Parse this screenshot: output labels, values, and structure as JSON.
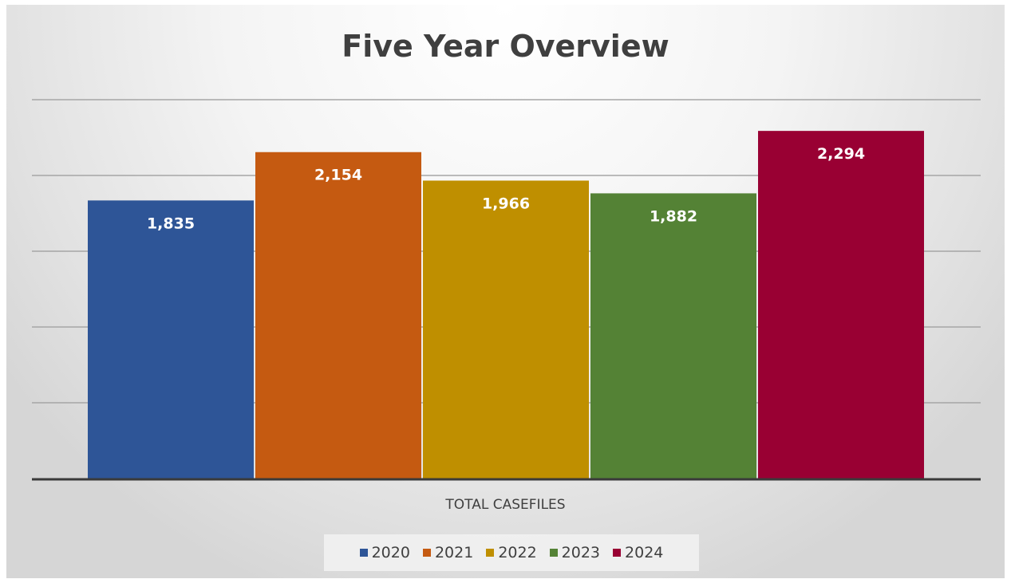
{
  "chart_data": {
    "type": "bar",
    "title": "Five Year Overview",
    "categories": [
      "TOTAL CASEFILES"
    ],
    "series": [
      {
        "name": "2020",
        "values": [
          1835
        ],
        "color": "#2e5597"
      },
      {
        "name": "2021",
        "values": [
          2154
        ],
        "color": "#c55a11"
      },
      {
        "name": "2022",
        "values": [
          1966
        ],
        "color": "#bf8f00"
      },
      {
        "name": "2023",
        "values": [
          1882
        ],
        "color": "#548235"
      },
      {
        "name": "2024",
        "values": [
          2294
        ],
        "color": "#990033"
      }
    ],
    "data_labels": [
      "1,835",
      "2,154",
      "1,966",
      "1,882",
      "2,294"
    ],
    "xlabel": "",
    "ylabel": "",
    "ylim": [
      0,
      2500
    ],
    "gridlines": true,
    "y_tick_labels_visible": false,
    "legend_position": "bottom"
  }
}
